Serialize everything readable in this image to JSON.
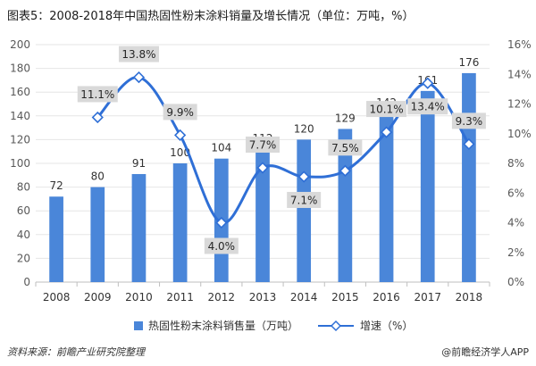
{
  "page": {
    "title": "图表5：2008-2018年中国热固性粉末涂料销量及增长情况（单位：万吨，%）",
    "source": "资料来源：前瞻产业研究院整理",
    "brand": "@前瞻经济学人APP"
  },
  "colors": {
    "bar": "#4a86d9",
    "line": "#2f6fd6",
    "label_bg": "#d9d9d9",
    "grid": "#e6e6e6",
    "axis": "#bfbfbf",
    "tick": "#595959"
  },
  "chart_data": {
    "type": "bar",
    "title": "",
    "categories": [
      "2008",
      "2009",
      "2010",
      "2011",
      "2012",
      "2013",
      "2014",
      "2015",
      "2016",
      "2017",
      "2018"
    ],
    "series": [
      {
        "name": "热固性粉末涂料销售量（万吨）",
        "type": "bar",
        "axis": "left",
        "values": [
          72,
          80,
          91,
          100,
          104,
          112,
          120,
          129,
          142,
          161,
          176
        ],
        "labels": [
          "72",
          "80",
          "91",
          "100",
          "104",
          "112",
          "120",
          "129",
          "142",
          "161",
          "176"
        ]
      },
      {
        "name": "增速（%）",
        "type": "line",
        "axis": "right",
        "smooth": true,
        "marker": "diamond",
        "x": [
          "2009",
          "2010",
          "2011",
          "2012",
          "2013",
          "2014",
          "2015",
          "2016",
          "2017",
          "2018"
        ],
        "values": [
          11.1,
          13.8,
          9.9,
          4.0,
          7.7,
          7.1,
          7.5,
          10.1,
          13.4,
          9.3
        ],
        "labels": [
          "11.1%",
          "13.8%",
          "9.9%",
          "4.0%",
          "7.7%",
          "7.1%",
          "7.5%",
          "10.1%",
          "13.4%",
          "9.3%"
        ]
      }
    ],
    "y_left": {
      "range": [
        0,
        200
      ],
      "ticks": [
        0,
        20,
        40,
        60,
        80,
        100,
        120,
        140,
        160,
        180,
        200
      ],
      "tick_labels": [
        "0",
        "20",
        "40",
        "60",
        "80",
        "100",
        "120",
        "140",
        "160",
        "180",
        "200"
      ]
    },
    "y_right": {
      "range": [
        0,
        16
      ],
      "ticks": [
        0,
        2,
        4,
        6,
        8,
        10,
        12,
        14,
        16
      ],
      "tick_labels": [
        "0%",
        "2%",
        "4%",
        "6%",
        "8%",
        "10%",
        "12%",
        "14%",
        "16%"
      ]
    },
    "grid": true,
    "legend": "bottom"
  }
}
